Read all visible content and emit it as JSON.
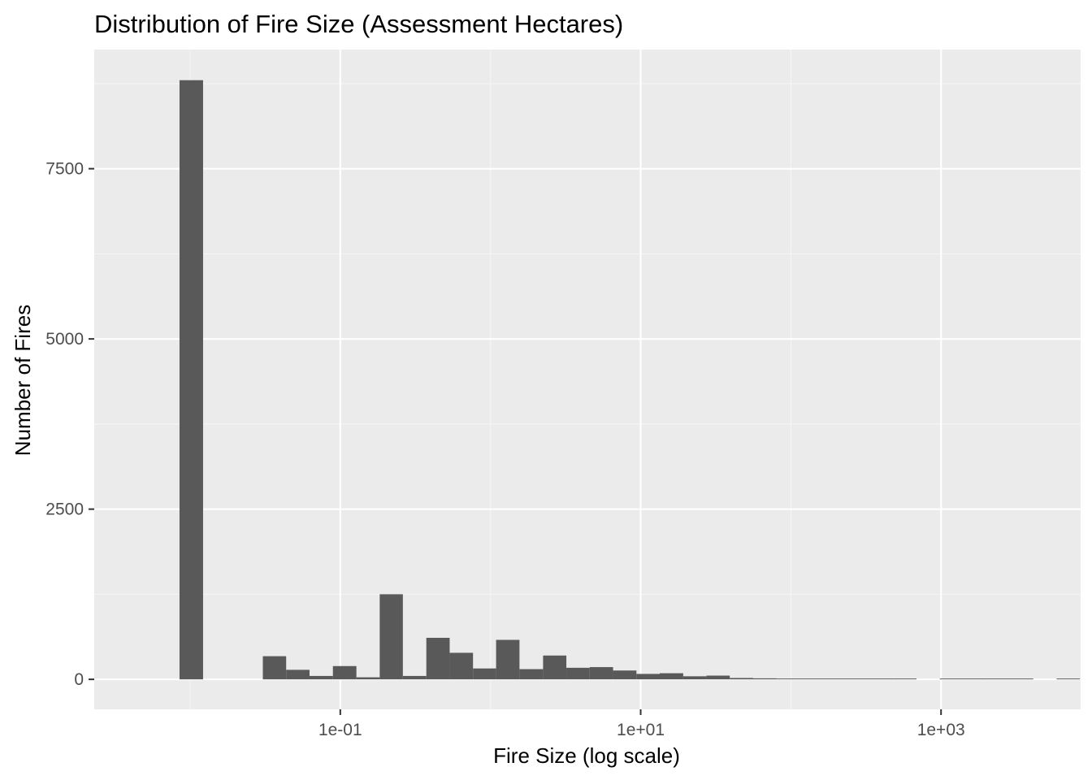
{
  "chart_data": {
    "type": "bar",
    "title": "Distribution of Fire Size (Assessment Hectares)",
    "xlabel": "Fire Size (log scale)",
    "ylabel": "Number of Fires",
    "x_scale": "log10",
    "x_ticks": [
      {
        "value": 0.1,
        "label": "1e-01"
      },
      {
        "value": 10,
        "label": "1e+01"
      },
      {
        "value": 1000,
        "label": "1e+03"
      }
    ],
    "y_ticks": [
      {
        "value": 0,
        "label": "0"
      },
      {
        "value": 2500,
        "label": "2500"
      },
      {
        "value": 5000,
        "label": "5000"
      },
      {
        "value": 7500,
        "label": "7500"
      }
    ],
    "ylim": [
      -440,
      9250
    ],
    "xlim": [
      0.0023,
      8500
    ],
    "bins": [
      {
        "x_start": 0.0085,
        "x_end": 0.0122,
        "count": 8800
      },
      {
        "x_start": 0.0305,
        "x_end": 0.0436,
        "count": 340
      },
      {
        "x_start": 0.0436,
        "x_end": 0.0624,
        "count": 140
      },
      {
        "x_start": 0.0624,
        "x_end": 0.0893,
        "count": 50
      },
      {
        "x_start": 0.0893,
        "x_end": 0.128,
        "count": 195
      },
      {
        "x_start": 0.128,
        "x_end": 0.183,
        "count": 30
      },
      {
        "x_start": 0.183,
        "x_end": 0.261,
        "count": 1250
      },
      {
        "x_start": 0.261,
        "x_end": 0.374,
        "count": 50
      },
      {
        "x_start": 0.374,
        "x_end": 0.535,
        "count": 610
      },
      {
        "x_start": 0.535,
        "x_end": 0.765,
        "count": 390
      },
      {
        "x_start": 0.765,
        "x_end": 1.09,
        "count": 160
      },
      {
        "x_start": 1.09,
        "x_end": 1.56,
        "count": 580
      },
      {
        "x_start": 1.56,
        "x_end": 2.24,
        "count": 150
      },
      {
        "x_start": 2.24,
        "x_end": 3.2,
        "count": 350
      },
      {
        "x_start": 3.2,
        "x_end": 4.58,
        "count": 170
      },
      {
        "x_start": 4.58,
        "x_end": 6.55,
        "count": 180
      },
      {
        "x_start": 6.55,
        "x_end": 9.37,
        "count": 130
      },
      {
        "x_start": 9.37,
        "x_end": 13.4,
        "count": 80
      },
      {
        "x_start": 13.4,
        "x_end": 19.2,
        "count": 90
      },
      {
        "x_start": 19.2,
        "x_end": 27.4,
        "count": 45
      },
      {
        "x_start": 27.4,
        "x_end": 39.2,
        "count": 55
      },
      {
        "x_start": 39.2,
        "x_end": 56.1,
        "count": 20
      },
      {
        "x_start": 56.1,
        "x_end": 80.3,
        "count": 15
      },
      {
        "x_start": 80.3,
        "x_end": 115,
        "count": 10
      },
      {
        "x_start": 115,
        "x_end": 164,
        "count": 8
      },
      {
        "x_start": 164,
        "x_end": 235,
        "count": 6
      },
      {
        "x_start": 235,
        "x_end": 336,
        "count": 5
      },
      {
        "x_start": 336,
        "x_end": 480,
        "count": 4
      },
      {
        "x_start": 480,
        "x_end": 687,
        "count": 3
      },
      {
        "x_start": 982,
        "x_end": 1405,
        "count": 3
      },
      {
        "x_start": 1405,
        "x_end": 2010,
        "count": 2
      },
      {
        "x_start": 2010,
        "x_end": 2875,
        "count": 2
      },
      {
        "x_start": 2875,
        "x_end": 4112,
        "count": 2
      },
      {
        "x_start": 5882,
        "x_end": 8414,
        "count": 2
      }
    ],
    "grid": true,
    "colors": {
      "panel_background": "#ebebeb",
      "grid_major": "#ffffff",
      "grid_minor": "#f5f5f5",
      "bar_fill": "#595959",
      "tick_text": "#4d4d4d",
      "tick_mark": "#333333"
    }
  }
}
